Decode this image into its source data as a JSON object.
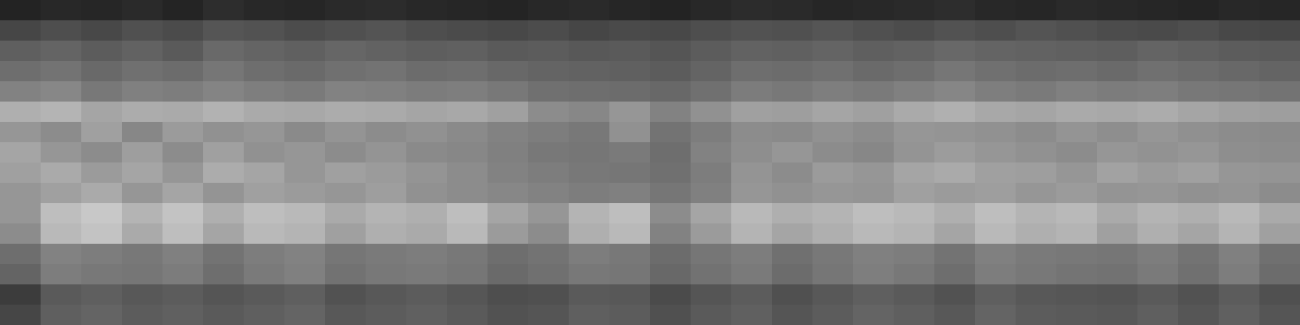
{
  "chart_data": {
    "type": "heatmap",
    "tick_labels": false,
    "zlim": [
      0,
      255
    ],
    "cells": [
      [
        35,
        40,
        38,
        42,
        36,
        45,
        40,
        38,
        42,
        44,
        40,
        38,
        36,
        40,
        42,
        38,
        35,
        40,
        44,
        42,
        38,
        40,
        42,
        45,
        40,
        38,
        42,
        40,
        38,
        36,
        40,
        38
      ],
      [
        70,
        78,
        72,
        80,
        75,
        85,
        82,
        76,
        80,
        84,
        78,
        75,
        72,
        76,
        70,
        74,
        72,
        78,
        82,
        80,
        85,
        80,
        76,
        82,
        78,
        84,
        80,
        76,
        74,
        78,
        72,
        70
      ],
      [
        95,
        100,
        92,
        98,
        90,
        105,
        100,
        96,
        102,
        98,
        94,
        96,
        90,
        92,
        88,
        90,
        85,
        92,
        98,
        96,
        100,
        95,
        98,
        104,
        100,
        98,
        96,
        94,
        100,
        96,
        92,
        90
      ],
      [
        110,
        115,
        105,
        112,
        108,
        118,
        110,
        106,
        112,
        115,
        108,
        110,
        104,
        100,
        98,
        96,
        92,
        100,
        110,
        108,
        112,
        106,
        110,
        118,
        112,
        108,
        110,
        106,
        112,
        108,
        104,
        100
      ],
      [
        130,
        135,
        120,
        128,
        125,
        132,
        126,
        122,
        130,
        128,
        124,
        126,
        120,
        112,
        110,
        108,
        104,
        112,
        124,
        120,
        126,
        122,
        128,
        134,
        126,
        122,
        128,
        124,
        126,
        120,
        118,
        115
      ],
      [
        175,
        180,
        165,
        172,
        170,
        178,
        170,
        168,
        172,
        170,
        165,
        168,
        160,
        140,
        135,
        150,
        130,
        145,
        160,
        158,
        165,
        160,
        170,
        176,
        168,
        165,
        170,
        168,
        172,
        165,
        160,
        158
      ],
      [
        150,
        140,
        160,
        135,
        155,
        145,
        150,
        138,
        148,
        140,
        145,
        138,
        130,
        125,
        120,
        145,
        115,
        125,
        140,
        138,
        145,
        140,
        150,
        148,
        145,
        140,
        148,
        142,
        150,
        144,
        140,
        138
      ],
      [
        165,
        150,
        140,
        158,
        140,
        160,
        145,
        150,
        140,
        148,
        138,
        135,
        128,
        120,
        118,
        122,
        110,
        130,
        142,
        150,
        140,
        135,
        148,
        156,
        150,
        145,
        140,
        150,
        146,
        150,
        142,
        140
      ],
      [
        160,
        170,
        155,
        165,
        150,
        172,
        165,
        150,
        160,
        155,
        148,
        140,
        130,
        125,
        120,
        118,
        112,
        125,
        148,
        140,
        155,
        150,
        165,
        170,
        160,
        158,
        150,
        162,
        155,
        160,
        150,
        148
      ],
      [
        150,
        160,
        170,
        150,
        165,
        148,
        160,
        155,
        150,
        158,
        145,
        140,
        135,
        130,
        125,
        128,
        118,
        128,
        150,
        145,
        150,
        148,
        160,
        155,
        158,
        150,
        155,
        148,
        150,
        145,
        148,
        140
      ],
      [
        150,
        190,
        200,
        180,
        195,
        175,
        190,
        185,
        170,
        180,
        175,
        190,
        165,
        150,
        180,
        190,
        140,
        165,
        185,
        175,
        180,
        190,
        185,
        175,
        190,
        180,
        185,
        170,
        180,
        175,
        185,
        170
      ],
      [
        140,
        185,
        195,
        170,
        190,
        165,
        185,
        180,
        160,
        175,
        170,
        185,
        155,
        140,
        175,
        185,
        130,
        155,
        180,
        165,
        175,
        185,
        180,
        165,
        185,
        175,
        180,
        160,
        175,
        165,
        180,
        160
      ],
      [
        110,
        130,
        125,
        120,
        128,
        115,
        125,
        130,
        118,
        122,
        125,
        120,
        110,
        115,
        125,
        120,
        108,
        118,
        125,
        112,
        120,
        128,
        125,
        115,
        128,
        122,
        120,
        118,
        125,
        115,
        128,
        112
      ],
      [
        100,
        125,
        120,
        118,
        124,
        110,
        122,
        128,
        114,
        120,
        122,
        118,
        106,
        112,
        120,
        118,
        104,
        114,
        122,
        108,
        118,
        126,
        120,
        110,
        125,
        120,
        116,
        114,
        122,
        112,
        125,
        108
      ],
      [
        60,
        90,
        95,
        88,
        92,
        85,
        90,
        95,
        82,
        88,
        92,
        86,
        78,
        80,
        90,
        88,
        75,
        85,
        92,
        80,
        88,
        95,
        90,
        82,
        95,
        88,
        86,
        84,
        90,
        82,
        92,
        80
      ],
      [
        70,
        95,
        100,
        92,
        96,
        90,
        95,
        100,
        88,
        92,
        96,
        90,
        82,
        85,
        95,
        92,
        80,
        90,
        96,
        85,
        92,
        100,
        95,
        88,
        100,
        92,
        90,
        88,
        95,
        86,
        96,
        85
      ]
    ]
  }
}
